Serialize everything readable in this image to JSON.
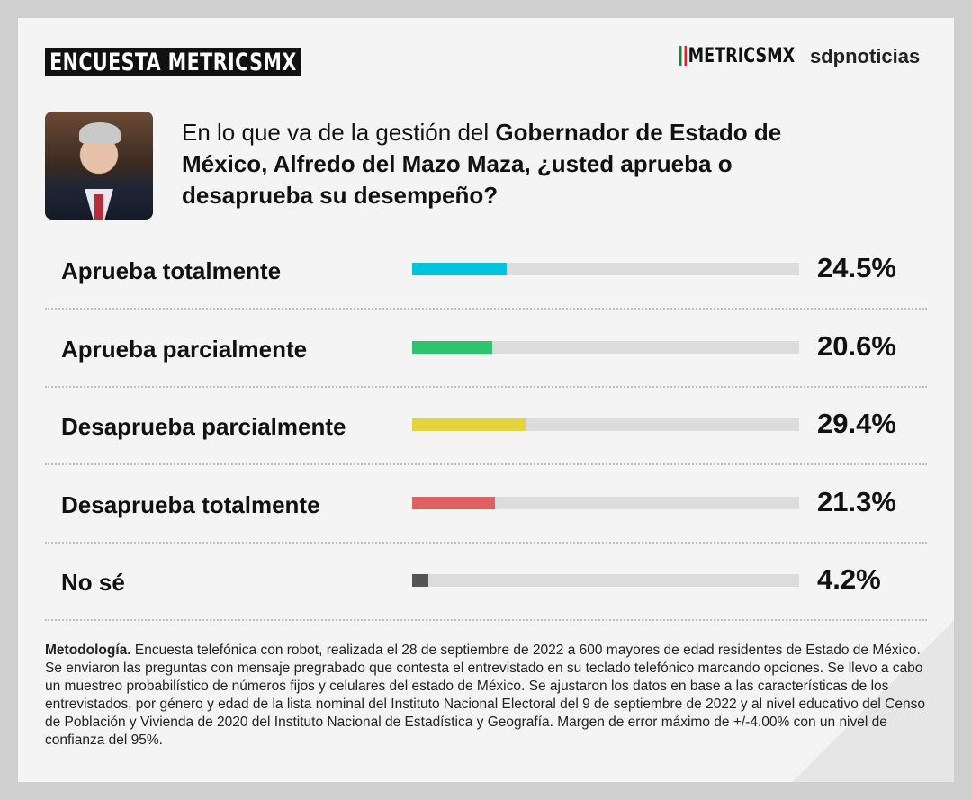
{
  "header": {
    "tag": "ENCUESTA METRICSMX",
    "logo_metrics": "METRICSMX",
    "logo_sdp": "sdpnoticias"
  },
  "question": {
    "pre": "En lo que va de la gestión del ",
    "bold": "Gobernador de Estado de México, Alfredo del Mazo Maza, ¿usted aprueba o desaprueba su desempeño?"
  },
  "chart_data": {
    "type": "bar",
    "orientation": "horizontal",
    "categories": [
      "Aprueba totalmente",
      "Aprueba parcialmente",
      "Desaprueba parcialmente",
      "Desaprueba totalmente",
      "No sé"
    ],
    "values": [
      24.5,
      20.6,
      29.4,
      21.3,
      4.2
    ],
    "labels": [
      "24.5%",
      "20.6%",
      "29.4%",
      "21.3%",
      "4.2%"
    ],
    "colors": [
      "#00c4dc",
      "#2ec46e",
      "#e6d43c",
      "#e0605e",
      "#555555"
    ],
    "xlim": [
      0,
      100
    ]
  },
  "methodology": {
    "title": "Metodología.",
    "text": " Encuesta telefónica con robot, realizada el 28 de septiembre de 2022 a 600 mayores de edad residentes de Estado de México. Se enviaron las preguntas con mensaje pregrabado que contesta el entrevistado en su teclado telefónico marcando opciones. Se llevo a cabo un muestreo probabilístico de números fijos y celulares del estado de México. Se ajustaron los datos en base a las características de los entrevistados, por género y edad de la lista nominal del Instituto Nacional Electoral del 9 de septiembre de 2022 y al nivel educativo del Censo de Población y Vivienda de 2020 del Instituto Nacional de Estadística y Geografía. Margen de error máximo de +/-4.00% con un nivel de confianza del 95%."
  }
}
